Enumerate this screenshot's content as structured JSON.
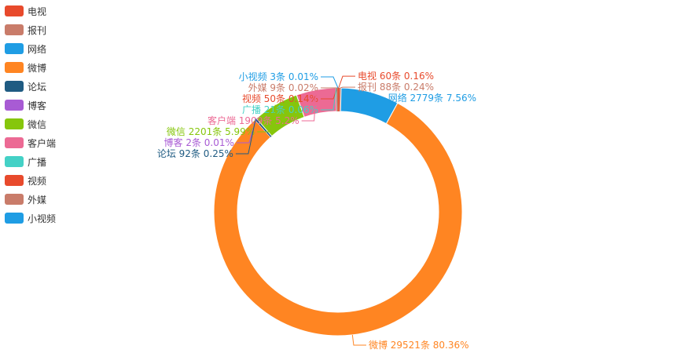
{
  "chart_data": {
    "type": "pie",
    "style": "donut",
    "legend_position": "left",
    "slices": [
      {
        "name": "电视",
        "value": 60,
        "label": "电视 60条 0.16%",
        "color": "#e84a2c"
      },
      {
        "name": "报刊",
        "value": 88,
        "label": "报刊 88条 0.24%",
        "color": "#c97c6a"
      },
      {
        "name": "网络",
        "value": 2779,
        "label": "网络 2779条 7.56%",
        "color": "#1f9de4"
      },
      {
        "name": "微博",
        "value": 29521,
        "label": "微博 29521条 80.36%",
        "color": "#ff8522"
      },
      {
        "name": "论坛",
        "value": 92,
        "label": "论坛 92条 0.25%",
        "color": "#1f5b82"
      },
      {
        "name": "博客",
        "value": 2,
        "label": "博客 2条 0.01%",
        "color": "#a85bd4"
      },
      {
        "name": "微信",
        "value": 2201,
        "label": "微信 2201条 5.99%",
        "color": "#86c60c"
      },
      {
        "name": "客户端",
        "value": 1909,
        "label": "客户端 1909条 5.2%",
        "color": "#ec6a94"
      },
      {
        "name": "广播",
        "value": 21,
        "label": "广播 21条 0.06%",
        "color": "#44d1c6"
      },
      {
        "name": "视频",
        "value": 50,
        "label": "视频 50条 0.14%",
        "color": "#e84a2c"
      },
      {
        "name": "外媒",
        "value": 9,
        "label": "外媒 9条 0.02%",
        "color": "#c97c6a"
      },
      {
        "name": "小视频",
        "value": 3,
        "label": "小视频 3条 0.01%",
        "color": "#1f9de4"
      }
    ]
  }
}
